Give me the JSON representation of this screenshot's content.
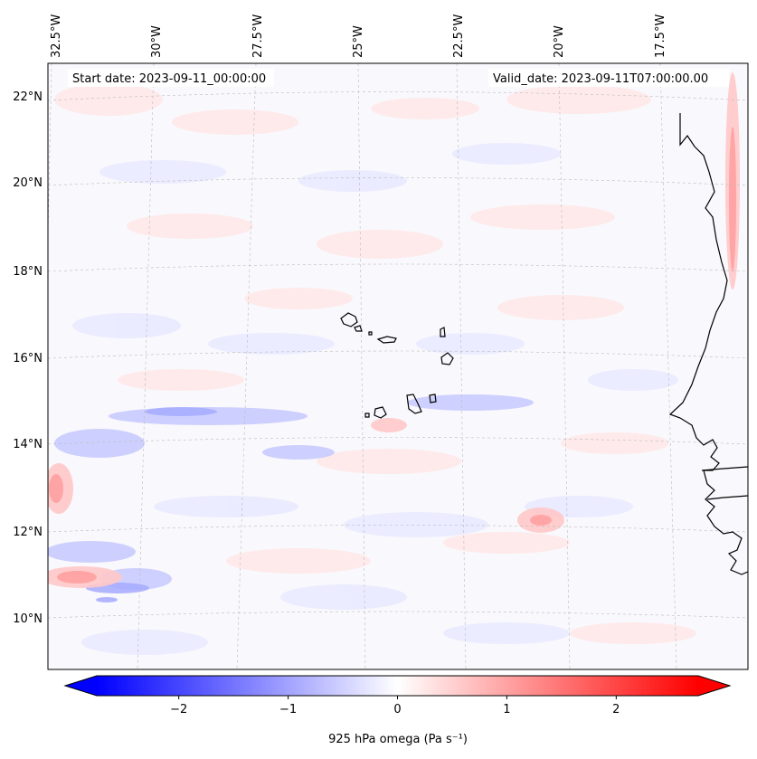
{
  "map": {
    "start_date": "Start date: 2023-09-11_00:00:00",
    "valid_date": "Valid_date: 2023-09-11T07:00:00.00",
    "longitude_labels": [
      "32.5°W",
      "30°W",
      "27.5°W",
      "25°W",
      "22.5°W",
      "20°W",
      "17.5°W"
    ],
    "latitude_labels": [
      "22°N",
      "20°N",
      "18°N",
      "16°N",
      "14°N",
      "12°N",
      "10°N"
    ],
    "variable": "925 hPa omega",
    "units": "(Pa s⁻¹)"
  },
  "colorbar": {
    "tick_labels": [
      "−2",
      "−1",
      "0",
      "1",
      "2"
    ],
    "min": -2.75,
    "max": 2.75,
    "colormap": "bwr",
    "label": "925 hPa omega (Pa s⁻¹)"
  },
  "colors": {
    "negative": "#0000ff",
    "neutral": "#ffffff",
    "positive": "#ff0000",
    "coastline": "#000000",
    "gridline": "#bbbbbb"
  }
}
